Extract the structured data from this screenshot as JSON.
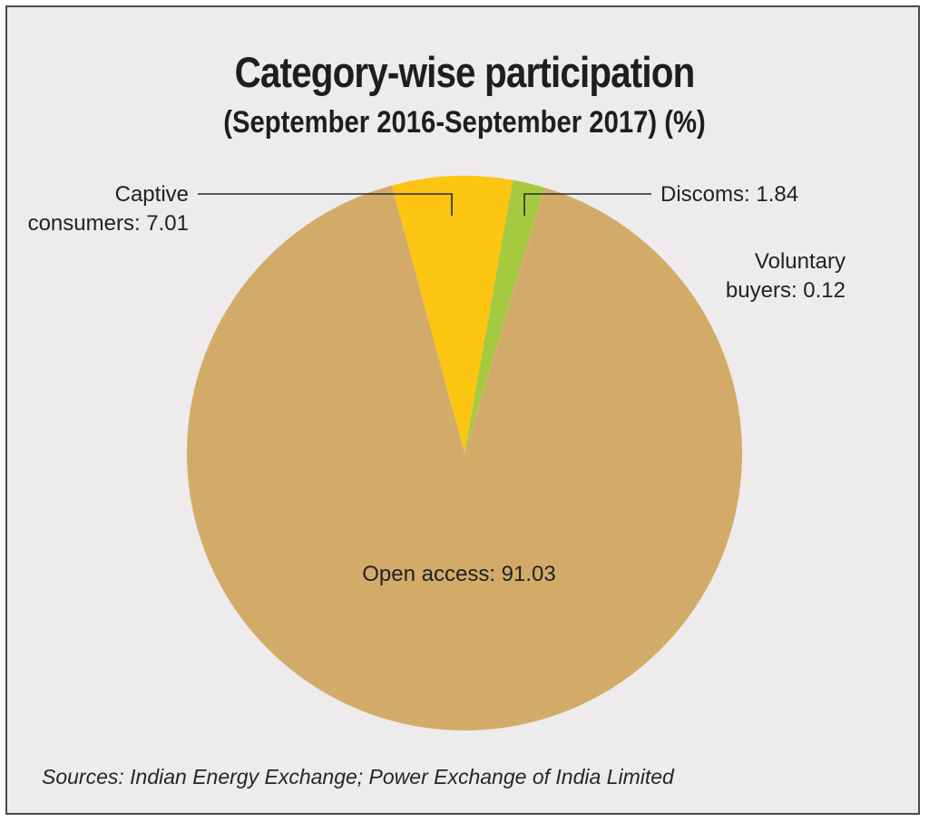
{
  "chart_data": {
    "type": "pie",
    "title": "Category-wise participation",
    "subtitle": "(September 2016-September 2017) (%)",
    "slices": [
      {
        "name": "Captive consumers",
        "value": 7.01,
        "color": "#fcc512",
        "label_lines": [
          "Captive",
          "consumers: 7.01"
        ]
      },
      {
        "name": "Discoms",
        "value": 1.84,
        "color": "#a6ca3f",
        "label_lines": [
          "Discoms: 1.84"
        ]
      },
      {
        "name": "Voluntary buyers",
        "value": 0.12,
        "color": "#d3ab69",
        "label_lines": [
          "Voluntary",
          "buyers: 0.12"
        ]
      },
      {
        "name": "Open access",
        "value": 91.03,
        "color": "#d3ab69",
        "label_lines": [
          "Open access: 91.03"
        ]
      }
    ],
    "start_slice": "Captive consumers",
    "source": "Sources: Indian Energy Exchange; Power Exchange of India Limited"
  }
}
